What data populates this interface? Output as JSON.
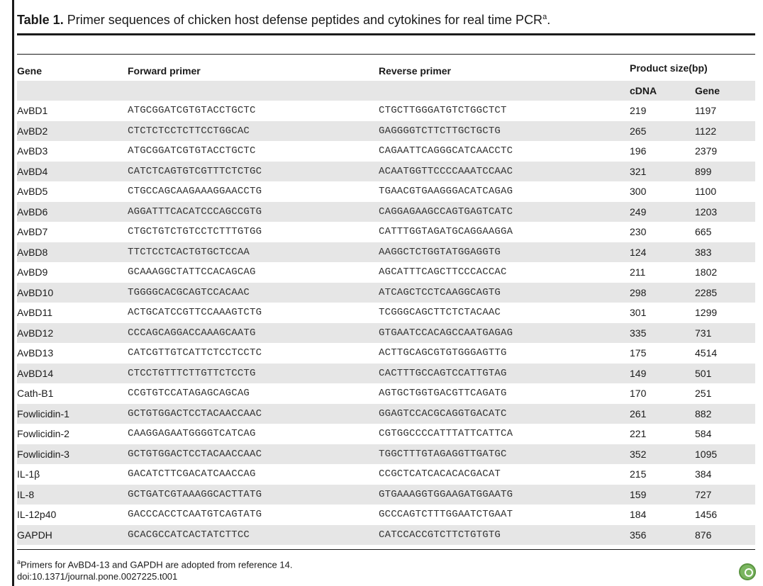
{
  "caption": {
    "label": "Table 1.",
    "text": "Primer sequences of chicken host defense peptides and cytokines for real time PCR",
    "superscript": "a",
    "end": "."
  },
  "headers": {
    "gene": "Gene",
    "forward": "Forward primer",
    "reverse": "Reverse primer",
    "product_size": "Product size(bp)",
    "cdna": "cDNA",
    "gene_size": "Gene"
  },
  "rows": [
    {
      "gene": "AvBD1",
      "forward": "ATGCGGATCGTGTACCTGCTC",
      "reverse": "CTGCTTGGGATGTCTGGCTCT",
      "cdna": "219",
      "size": "1197"
    },
    {
      "gene": "AvBD2",
      "forward": "CTCTCTCCTCTTCCTGGCAC",
      "reverse": "GAGGGGTCTTCTTGCTGCTG",
      "cdna": "265",
      "size": "1122"
    },
    {
      "gene": "AvBD3",
      "forward": "ATGCGGATCGTGTACCTGCTC",
      "reverse": "CAGAATTCAGGGCATCAACCTC",
      "cdna": "196",
      "size": "2379"
    },
    {
      "gene": "AvBD4",
      "forward": "CATCTCAGTGTCGTTTCTCTGC",
      "reverse": "ACAATGGTTCCCCAAATCCAAC",
      "cdna": "321",
      "size": "899"
    },
    {
      "gene": "AvBD5",
      "forward": "CTGCCAGCAAGAAAGGAACCTG",
      "reverse": "TGAACGTGAAGGGACATCAGAG",
      "cdna": "300",
      "size": "1100"
    },
    {
      "gene": "AvBD6",
      "forward": "AGGATTTCACATCCCAGCCGTG",
      "reverse": "CAGGAGAAGCCAGTGAGTCATC",
      "cdna": "249",
      "size": "1203"
    },
    {
      "gene": "AvBD7",
      "forward": "CTGCTGTCTGTCCTCTTTGTGG",
      "reverse": "CATTTGGTAGATGCAGGAAGGA",
      "cdna": "230",
      "size": "665"
    },
    {
      "gene": "AvBD8",
      "forward": "TTCTCCTCACTGTGCTCCAA",
      "reverse": "AAGGCTCTGGTATGGAGGTG",
      "cdna": "124",
      "size": "383"
    },
    {
      "gene": "AvBD9",
      "forward": "GCAAAGGCTATTCCACAGCAG",
      "reverse": "AGCATTTCAGCTTCCCACCAC",
      "cdna": "211",
      "size": "1802"
    },
    {
      "gene": "AvBD10",
      "forward": "TGGGGCACGCAGTCCACAAC",
      "reverse": "ATCAGCTCCTCAAGGCAGTG",
      "cdna": "298",
      "size": "2285"
    },
    {
      "gene": "AvBD11",
      "forward": "ACTGCATCCGTTCCAAAGTCTG",
      "reverse": "TCGGGCAGCTTCTCTACAAC",
      "cdna": "301",
      "size": "1299"
    },
    {
      "gene": "AvBD12",
      "forward": "CCCAGCAGGACCAAAGCAATG",
      "reverse": "GTGAATCCACAGCCAATGAGAG",
      "cdna": "335",
      "size": "731"
    },
    {
      "gene": "AvBD13",
      "forward": "CATCGTTGTCATTCTCCTCCTC",
      "reverse": "ACTTGCAGCGTGTGGGAGTTG",
      "cdna": "175",
      "size": "4514"
    },
    {
      "gene": "AvBD14",
      "forward": "CTCCTGTTTCTTGTTCTCCTG",
      "reverse": "CACTTTGCCAGTCCATTGTAG",
      "cdna": "149",
      "size": "501"
    },
    {
      "gene": "Cath-B1",
      "forward": "CCGTGTCCATAGAGCAGCAG",
      "reverse": "AGTGCTGGTGACGTTCAGATG",
      "cdna": "170",
      "size": "251"
    },
    {
      "gene": "Fowlicidin-1",
      "forward": "GCTGTGGACTCCTACAACCAAC",
      "reverse": "GGAGTCCACGCAGGTGACATC",
      "cdna": "261",
      "size": "882"
    },
    {
      "gene": "Fowlicidin-2",
      "forward": "CAAGGAGAATGGGGTCATCAG",
      "reverse": "CGTGGCCCCATTTATTCATTCA",
      "cdna": "221",
      "size": "584"
    },
    {
      "gene": "Fowlicidin-3",
      "forward": "GCTGTGGACTCCTACAACCAAC",
      "reverse": "TGGCTTTGTAGAGGTTGATGC",
      "cdna": "352",
      "size": "1095"
    },
    {
      "gene": "IL-1β",
      "forward": "GACATCTTCGACATCAACCAG",
      "reverse": "CCGCTCATCACACACGACAT",
      "cdna": "215",
      "size": "384"
    },
    {
      "gene": "IL-8",
      "forward": "GCTGATCGTAAAGGCACTTATG",
      "reverse": "GTGAAAGGTGGAAGATGGAATG",
      "cdna": "159",
      "size": "727"
    },
    {
      "gene": "IL-12p40",
      "forward": "GACCCACCTCAATGTCAGTATG",
      "reverse": "GCCCAGTCTTTGGAATCTGAAT",
      "cdna": "184",
      "size": "1456"
    },
    {
      "gene": "GAPDH",
      "forward": "GCACGCCATCACTATCTTCC",
      "reverse": "CATCCACCGTCTTCTGTGTG",
      "cdna": "356",
      "size": "876"
    }
  ],
  "footnote": {
    "superscript": "a",
    "text": "Primers for AvBD4-13 and GAPDH are adopted from reference 14.",
    "doi": "doi:10.1371/journal.pone.0027225.t001"
  }
}
